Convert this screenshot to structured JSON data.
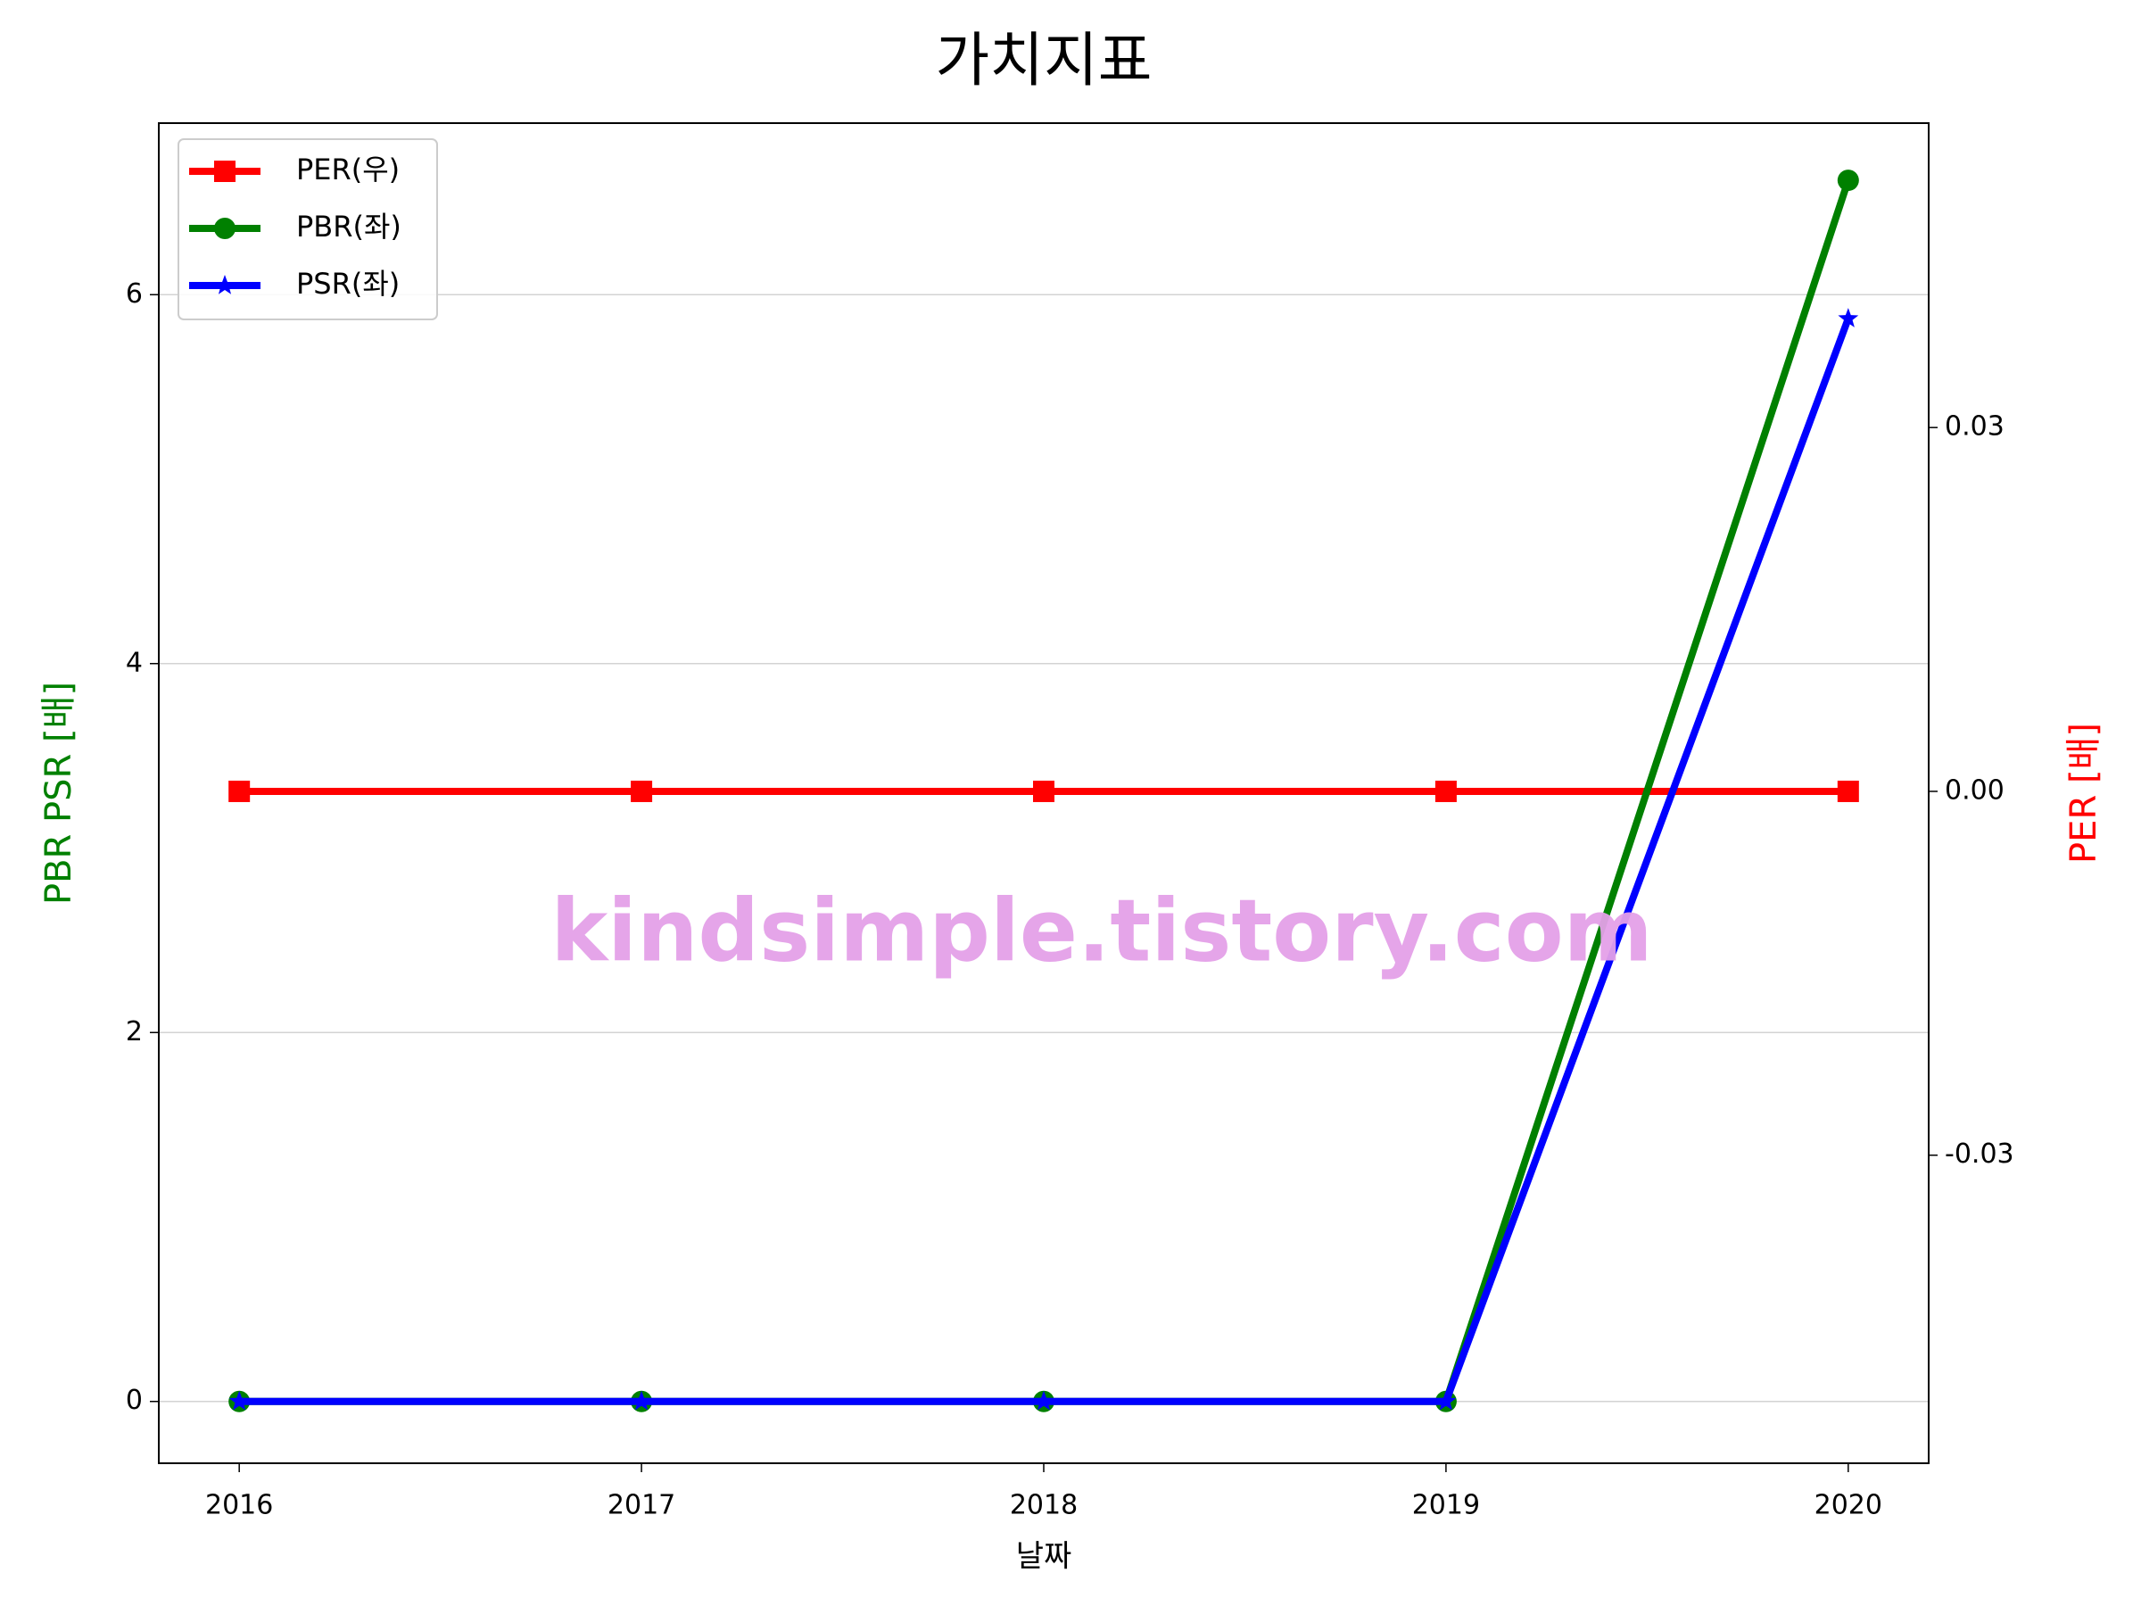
{
  "chart_data": {
    "type": "line",
    "title": "가치지표",
    "x_label": "날짜",
    "y_label": "PBR PSR [배]",
    "y2_label": "PER [배]",
    "y_label_color": "#008000",
    "y2_label_color": "#ff0000",
    "annotation": "kindsimple.tistory.com",
    "x": [
      2016,
      2017,
      2018,
      2019,
      2020
    ],
    "xlim": [
      2015.8,
      2020.2
    ],
    "xticks": [
      2016,
      2017,
      2018,
      2019,
      2020
    ],
    "ylim": [
      -0.335,
      6.93
    ],
    "yticks": [
      0,
      2,
      4,
      6
    ],
    "y2lim": [
      -0.0554,
      0.0551
    ],
    "y2ticks": [
      -0.03,
      {
        "value": 0,
        "label": "0.00"
      },
      0.03
    ],
    "grid": true,
    "legend": "upper left",
    "series": [
      {
        "name": "PER(우)",
        "color": "#ff0000",
        "marker": "square",
        "axis": "y2",
        "values": [
          0,
          0,
          0,
          0,
          0
        ]
      },
      {
        "name": "PBR(좌)",
        "color": "#008000",
        "marker": "circle",
        "values": [
          0,
          0,
          0,
          0,
          6.62
        ]
      },
      {
        "name": "PSR(좌)",
        "color": "#0000ff",
        "marker": "star",
        "values": [
          0,
          0,
          0,
          0,
          5.87
        ]
      }
    ]
  }
}
